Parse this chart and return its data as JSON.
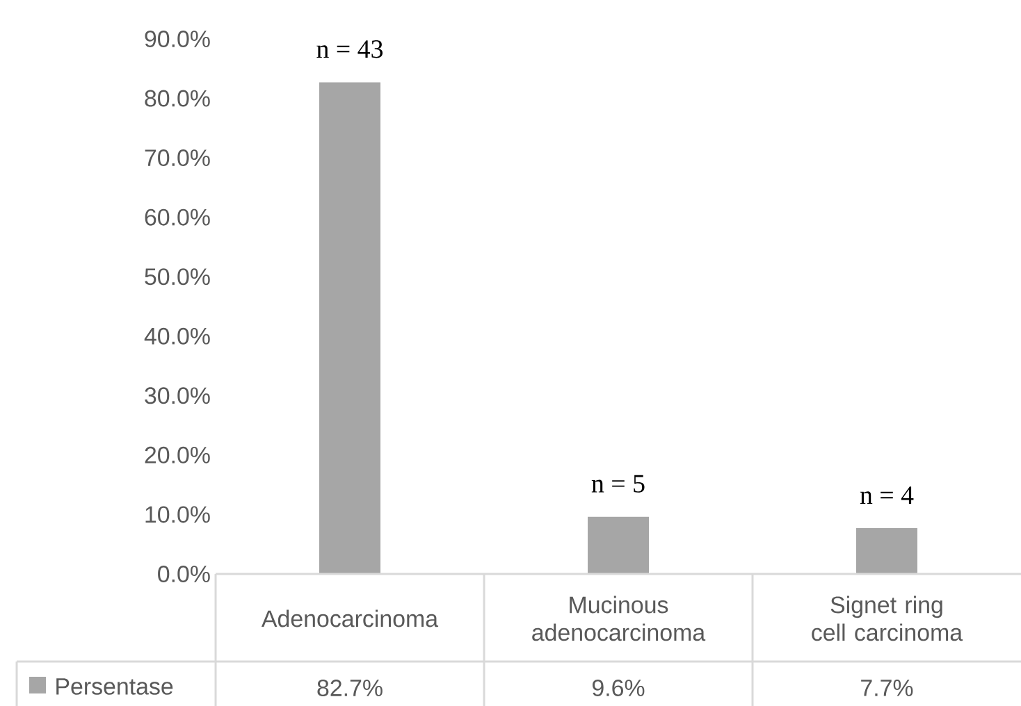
{
  "chart_data": {
    "type": "bar",
    "categories": [
      "Adenocarcinoma",
      "Mucinous adenocarcinoma",
      "Signet ring cell carcinoma"
    ],
    "series": [
      {
        "name": "Persentase",
        "color": "#a6a6a6",
        "values": [
          82.7,
          9.6,
          7.7
        ],
        "value_labels": [
          "82.7%",
          "9.6%",
          "7.7%"
        ]
      }
    ],
    "ylim": [
      0,
      90
    ],
    "yticks": [
      {
        "value": 0,
        "label": "0.0%"
      },
      {
        "value": 10,
        "label": "10.0%"
      },
      {
        "value": 20,
        "label": "20.0%"
      },
      {
        "value": 30,
        "label": "30.0%"
      },
      {
        "value": 40,
        "label": "40.0%"
      },
      {
        "value": 50,
        "label": "50.0%"
      },
      {
        "value": 60,
        "label": "60.0%"
      },
      {
        "value": 70,
        "label": "70.0%"
      },
      {
        "value": 80,
        "label": "80.0%"
      },
      {
        "value": 90,
        "label": "90.0%"
      }
    ],
    "annotations": [
      {
        "text": "n = 43",
        "x": "Adenocarcinoma",
        "y": 82.7
      },
      {
        "text": "n = 5",
        "x": "Mucinous adenocarcinoma",
        "y": 9.6
      },
      {
        "text": "n = 4",
        "x": "Signet ring cell carcinoma",
        "y": 7.7
      }
    ],
    "grid": false,
    "legend": "bottom left"
  }
}
